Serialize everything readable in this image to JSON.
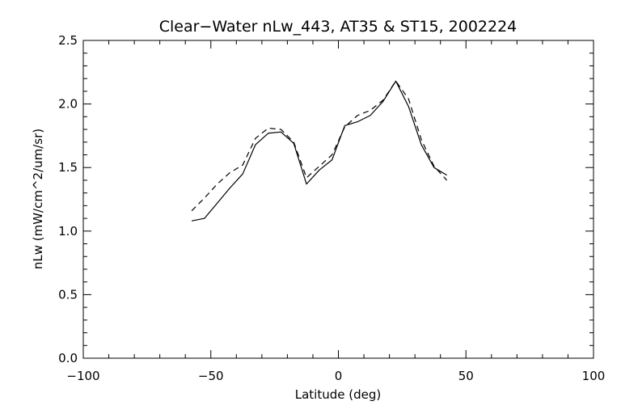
{
  "chart_data": {
    "type": "line",
    "title": "Clear−Water nLw_443, AT35 & ST15, 2002224",
    "xlabel": "Latitude (deg)",
    "ylabel": "nLw (mW/cm^2/um/sr)",
    "xlim": [
      -100,
      100
    ],
    "ylim": [
      0.0,
      2.5
    ],
    "x_ticks": [
      -100,
      -50,
      0,
      50,
      100
    ],
    "x_tick_labels": [
      "−100",
      "−50",
      "0",
      "50",
      "100"
    ],
    "y_ticks": [
      0.0,
      0.5,
      1.0,
      1.5,
      2.0,
      2.5
    ],
    "y_tick_labels": [
      "0.0",
      "0.5",
      "1.0",
      "1.5",
      "2.0",
      "2.5"
    ],
    "grid": false,
    "series": [
      {
        "style": "solid",
        "x": [
          -57.5,
          -52.5,
          -47.5,
          -42.5,
          -37.5,
          -32.5,
          -27.5,
          -22.5,
          -17.5,
          -12.5,
          -7.5,
          -2.5,
          2.5,
          7.5,
          12.5,
          17.5,
          22.5,
          27.5,
          32.5,
          37.5,
          42.5
        ],
        "y": [
          1.08,
          1.1,
          1.22,
          1.34,
          1.45,
          1.68,
          1.77,
          1.78,
          1.69,
          1.37,
          1.48,
          1.56,
          1.83,
          1.86,
          1.91,
          2.02,
          2.18,
          1.98,
          1.68,
          1.5,
          1.44
        ]
      },
      {
        "style": "dashed",
        "x": [
          -57.5,
          -52.5,
          -47.5,
          -42.5,
          -37.5,
          -32.5,
          -27.5,
          -22.5,
          -17.5,
          -12.5,
          -7.5,
          -2.5,
          2.5,
          7.5,
          12.5,
          17.5,
          22.5,
          27.5,
          32.5,
          37.5,
          42.5
        ],
        "y": [
          1.16,
          1.26,
          1.37,
          1.46,
          1.52,
          1.73,
          1.81,
          1.8,
          1.7,
          1.42,
          1.51,
          1.6,
          1.82,
          1.91,
          1.95,
          2.03,
          2.18,
          2.04,
          1.72,
          1.51,
          1.4
        ]
      }
    ],
    "colors": {
      "line": "#000000",
      "axes": "#000000",
      "background": "#ffffff"
    }
  }
}
